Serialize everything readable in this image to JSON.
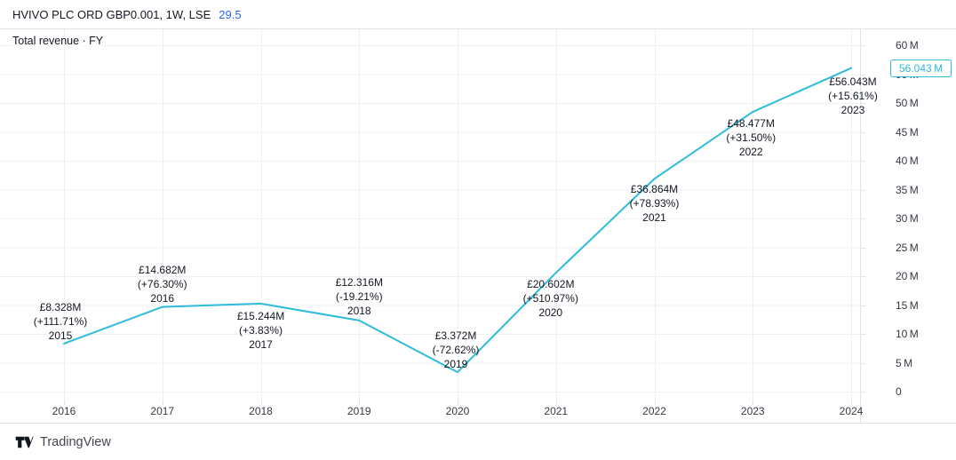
{
  "header": {
    "symbol_title": "HVIVO PLC ORD GBP0.001, 1W, LSE",
    "symbol_value": "29.5"
  },
  "legend": {
    "label": "Total revenue · FY"
  },
  "colors": {
    "line": "#2ebcdb",
    "value_blue": "#2962ff",
    "grid": "#eef0f3",
    "border": "#e0e3eb",
    "axis_text": "#363a45",
    "label_text": "#131722"
  },
  "price_scale": {
    "tick_labels": [
      {
        "v": 60,
        "label": "60 M"
      },
      {
        "v": 55,
        "label": "55 M"
      },
      {
        "v": 50,
        "label": "50 M"
      },
      {
        "v": 45,
        "label": "45 M"
      },
      {
        "v": 40,
        "label": "40 M"
      },
      {
        "v": 35,
        "label": "35 M"
      },
      {
        "v": 30,
        "label": "30 M"
      },
      {
        "v": 25,
        "label": "25 M"
      },
      {
        "v": 20,
        "label": "20 M"
      },
      {
        "v": 15,
        "label": "15 M"
      },
      {
        "v": 10,
        "label": "10 M"
      },
      {
        "v": 5,
        "label": "5 M"
      },
      {
        "v": 0,
        "label": "0"
      }
    ],
    "current": {
      "value": 56.043,
      "label": "56.043 M"
    }
  },
  "time_scale": {
    "years": [
      "2016",
      "2017",
      "2018",
      "2019",
      "2020",
      "2021",
      "2022",
      "2023",
      "2024"
    ]
  },
  "chart_data": {
    "type": "line",
    "title": "Total revenue · FY",
    "series_name": "Total revenue",
    "x_label": "Fiscal year",
    "y_unit": "GBP millions",
    "ylim": [
      0,
      60
    ],
    "grid": true,
    "x": [
      2015,
      2016,
      2017,
      2018,
      2019,
      2020,
      2021,
      2022,
      2023
    ],
    "values": [
      8.328,
      14.682,
      15.244,
      12.316,
      3.372,
      20.602,
      36.864,
      48.477,
      56.043
    ],
    "annotations": [
      {
        "value_label": "£8.328M",
        "change_label": "(+111.71%)",
        "year_label": "2015"
      },
      {
        "value_label": "£14.682M",
        "change_label": "(+76.30%)",
        "year_label": "2016"
      },
      {
        "value_label": "£15.244M",
        "change_label": "(+3.83%)",
        "year_label": "2017"
      },
      {
        "value_label": "£12.316M",
        "change_label": "(-19.21%)",
        "year_label": "2018"
      },
      {
        "value_label": "£3.372M",
        "change_label": "(-72.62%)",
        "year_label": "2019"
      },
      {
        "value_label": "£20.602M",
        "change_label": "(+510.97%)",
        "year_label": "2020"
      },
      {
        "value_label": "£36.864M",
        "change_label": "(+78.93%)",
        "year_label": "2021"
      },
      {
        "value_label": "£48.477M",
        "change_label": "(+31.50%)",
        "year_label": "2022"
      },
      {
        "value_label": "£56.043M",
        "change_label": "(+15.61%)",
        "year_label": "2023"
      }
    ]
  },
  "footer": {
    "brand": "TradingView"
  }
}
